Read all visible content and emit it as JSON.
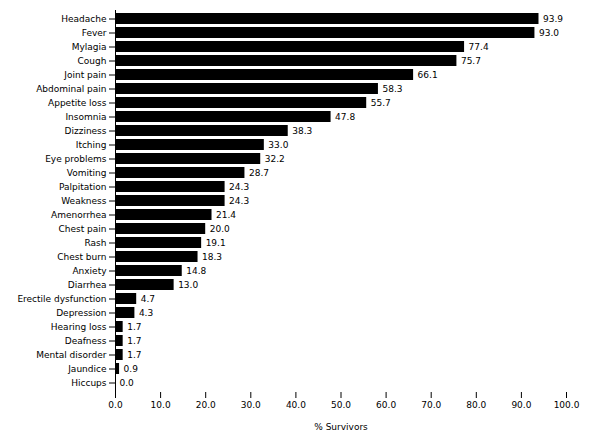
{
  "chart_data": {
    "type": "bar",
    "orientation": "horizontal",
    "xlabel": "% Survivors",
    "categories": [
      "Headache",
      "Fever",
      "Mylagia",
      "Cough",
      "Joint pain",
      "Abdominal pain",
      "Appetite loss",
      "Insomnia",
      "Dizziness",
      "Itching",
      "Eye problems",
      "Vomiting",
      "Palpitation",
      "Weakness",
      "Amenorrhea",
      "Chest pain",
      "Rash",
      "Chest burn",
      "Anxiety",
      "Diarrhea",
      "Erectile dysfunction",
      "Depression",
      "Hearing loss",
      "Deafness",
      "Mental disorder",
      "Jaundice",
      "Hiccups"
    ],
    "values": [
      93.9,
      93.0,
      77.4,
      75.7,
      66.1,
      58.3,
      55.7,
      47.8,
      38.3,
      33.0,
      32.2,
      28.7,
      24.3,
      24.3,
      21.4,
      20.0,
      19.1,
      18.3,
      14.8,
      13.0,
      4.7,
      4.3,
      1.7,
      1.7,
      1.7,
      0.9,
      0.0
    ],
    "value_labels": [
      "93.9",
      "93.0",
      "77.4",
      "75.7",
      "66.1",
      "58.3",
      "55.7",
      "47.8",
      "38.3",
      "33.0",
      "32.2",
      "28.7",
      "24.3",
      "24.3",
      "21.4",
      "20.0",
      "19.1",
      "18.3",
      "14.8",
      "13.0",
      "4.7",
      "4.3",
      "1.7",
      "1.7",
      "1.7",
      "0.9",
      "0.0"
    ],
    "color": "#000000",
    "data_labels": true,
    "grid": false,
    "xlim": [
      0,
      100
    ],
    "xticks": [
      {
        "value": 0,
        "label": "0.0"
      },
      {
        "value": 10,
        "label": "10.0"
      },
      {
        "value": 20,
        "label": "20.0"
      },
      {
        "value": 30,
        "label": "30.0"
      },
      {
        "value": 40,
        "label": "40.0"
      },
      {
        "value": 50,
        "label": "50.0"
      },
      {
        "value": 60,
        "label": "60.0"
      },
      {
        "value": 70,
        "label": "70.0"
      },
      {
        "value": 80,
        "label": "80.0"
      },
      {
        "value": 90,
        "label": "90.0"
      },
      {
        "value": 100,
        "label": "100.0"
      }
    ]
  }
}
